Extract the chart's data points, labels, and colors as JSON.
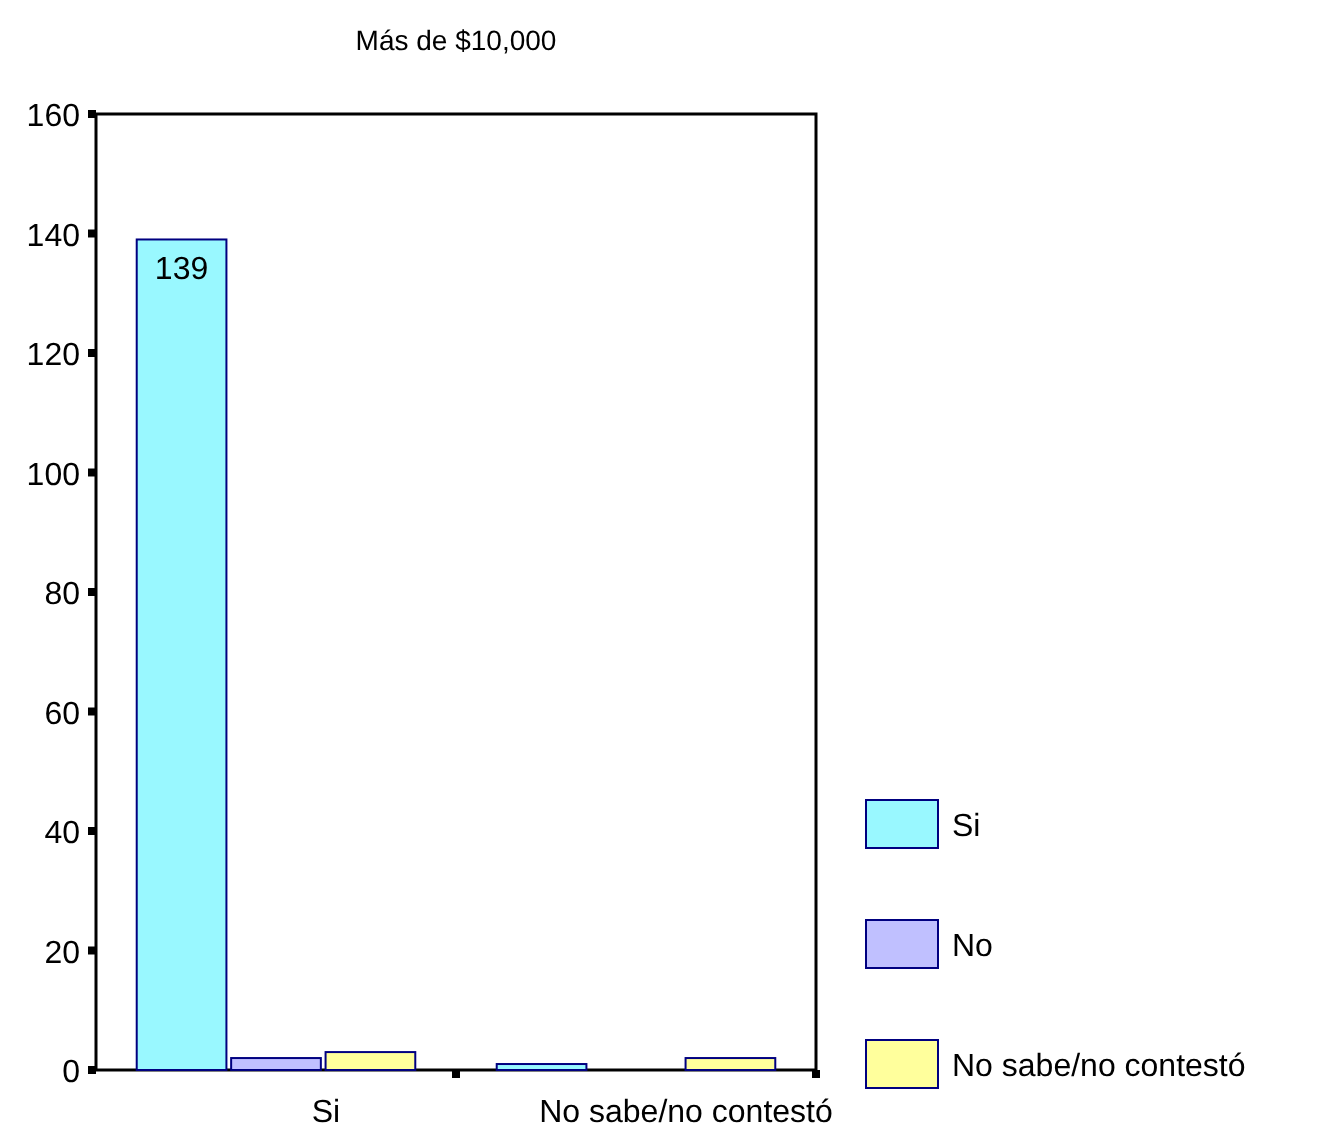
{
  "chart_data": {
    "type": "bar",
    "title": "Más de $10,000",
    "categories": [
      "Si",
      "No sabe/no contestó"
    ],
    "series": [
      {
        "name": "Si",
        "color": "#99f8ff",
        "values": [
          139,
          1
        ],
        "value_labels": [
          "139",
          null
        ]
      },
      {
        "name": "No",
        "color": "#c0c0ff",
        "values": [
          2,
          0
        ]
      },
      {
        "name": "No sabe/no contestó",
        "color": "#ffff9c",
        "values": [
          3,
          2
        ]
      }
    ],
    "ylim": [
      0,
      160
    ],
    "yticks": [
      0,
      20,
      40,
      60,
      80,
      100,
      120,
      140,
      160
    ],
    "legend": "right"
  }
}
